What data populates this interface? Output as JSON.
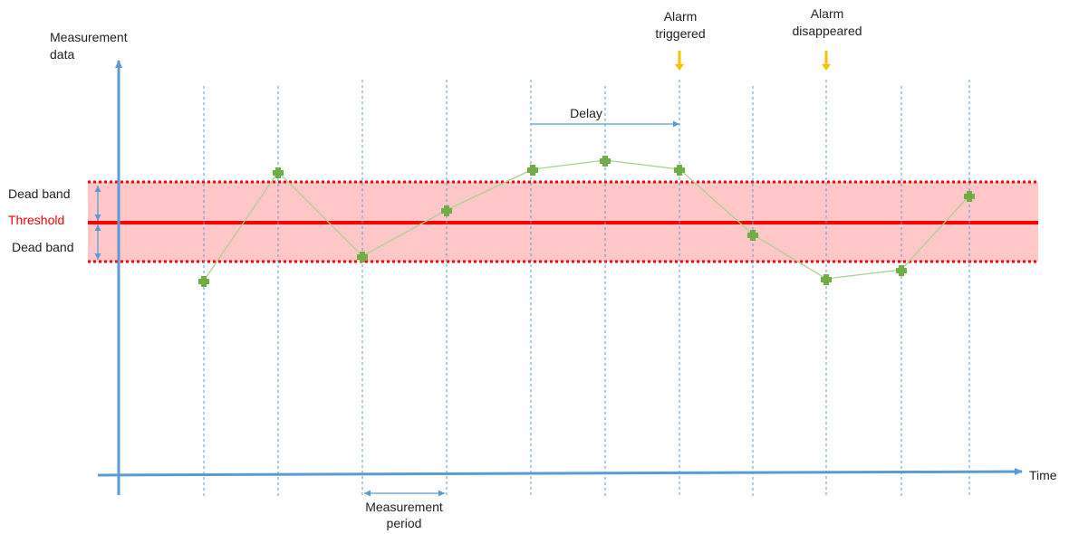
{
  "labels": {
    "y_axis_line1": "Measurement",
    "y_axis_line2": "data",
    "x_axis": "Time",
    "dead_band_top": "Dead band",
    "threshold": "Threshold",
    "dead_band_bottom": "Dead band",
    "delay": "Delay",
    "alarm_triggered_line1": "Alarm",
    "alarm_triggered_line2": "triggered",
    "alarm_disappeared_line1": "Alarm",
    "alarm_disappeared_line2": "disappeared",
    "measurement_period_line1": "Measurement",
    "measurement_period_line2": "period"
  },
  "colors": {
    "axis": "#5b9bd5",
    "gridline": "#5b9bd5",
    "threshold": "#ff0000",
    "dead_band_fill": "#ffc7c7",
    "dead_band_border": "#ff0000",
    "series_line": "#a9d18e",
    "series_marker": "#70ad47",
    "alarm_arrow": "#ffc000",
    "threshold_label": "#ff0000"
  }
}
